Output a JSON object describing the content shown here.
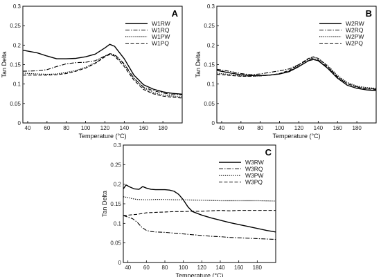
{
  "chart_data": [
    {
      "type": "line",
      "panel": "A",
      "xlabel": "Temperature (°C)",
      "ylabel": "Tan Delta",
      "xlim": [
        35,
        200
      ],
      "ylim": [
        0,
        0.3
      ],
      "xticks": [
        40,
        60,
        80,
        100,
        120,
        140,
        160,
        180
      ],
      "yticks": [
        0,
        0.05,
        0.1,
        0.15,
        0.2,
        0.25,
        0.3
      ],
      "legend_position": "top-right",
      "series": [
        {
          "name": "W1RW",
          "style": "solid",
          "x": [
            35,
            50,
            60,
            70,
            80,
            90,
            100,
            110,
            120,
            125,
            130,
            140,
            150,
            160,
            170,
            180,
            190,
            200
          ],
          "y": [
            0.187,
            0.18,
            0.172,
            0.165,
            0.165,
            0.166,
            0.17,
            0.177,
            0.193,
            0.202,
            0.197,
            0.165,
            0.123,
            0.098,
            0.087,
            0.08,
            0.076,
            0.074
          ]
        },
        {
          "name": "W1RQ",
          "style": "dashdot",
          "x": [
            35,
            50,
            60,
            70,
            80,
            90,
            100,
            110,
            120,
            125,
            130,
            140,
            150,
            160,
            170,
            180,
            190,
            200
          ],
          "y": [
            0.133,
            0.134,
            0.137,
            0.145,
            0.152,
            0.155,
            0.156,
            0.16,
            0.172,
            0.178,
            0.176,
            0.152,
            0.115,
            0.092,
            0.083,
            0.077,
            0.073,
            0.072
          ]
        },
        {
          "name": "W1PW",
          "style": "dotted",
          "x": [
            35,
            50,
            60,
            70,
            80,
            90,
            100,
            110,
            120,
            125,
            130,
            140,
            150,
            160,
            170,
            180,
            190,
            200
          ],
          "y": [
            0.128,
            0.126,
            0.125,
            0.126,
            0.13,
            0.135,
            0.143,
            0.155,
            0.172,
            0.177,
            0.174,
            0.15,
            0.115,
            0.09,
            0.078,
            0.072,
            0.069,
            0.067
          ]
        },
        {
          "name": "W1PQ",
          "style": "dashed",
          "x": [
            35,
            50,
            60,
            70,
            80,
            90,
            100,
            110,
            120,
            125,
            130,
            140,
            150,
            160,
            170,
            180,
            190,
            200
          ],
          "y": [
            0.123,
            0.123,
            0.123,
            0.124,
            0.127,
            0.133,
            0.141,
            0.153,
            0.17,
            0.176,
            0.172,
            0.145,
            0.11,
            0.086,
            0.075,
            0.069,
            0.066,
            0.064
          ]
        }
      ]
    },
    {
      "type": "line",
      "panel": "B",
      "xlabel": "Temperature (°C)",
      "ylabel": "Tan Delta",
      "xlim": [
        35,
        200
      ],
      "ylim": [
        0,
        0.3
      ],
      "xticks": [
        40,
        60,
        80,
        100,
        120,
        140,
        160,
        180
      ],
      "yticks": [
        0,
        0.05,
        0.1,
        0.15,
        0.2,
        0.25,
        0.3
      ],
      "legend_position": "top-right",
      "series": [
        {
          "name": "W2RW",
          "style": "solid",
          "x": [
            35,
            50,
            60,
            70,
            80,
            90,
            100,
            110,
            120,
            130,
            135,
            140,
            150,
            160,
            170,
            180,
            190,
            200
          ],
          "y": [
            0.135,
            0.128,
            0.124,
            0.122,
            0.122,
            0.123,
            0.126,
            0.132,
            0.145,
            0.16,
            0.163,
            0.16,
            0.14,
            0.115,
            0.097,
            0.089,
            0.085,
            0.083
          ]
        },
        {
          "name": "W2RQ",
          "style": "dashdot",
          "x": [
            35,
            50,
            60,
            70,
            80,
            90,
            100,
            110,
            120,
            130,
            135,
            140,
            150,
            160,
            170,
            180,
            190,
            200
          ],
          "y": [
            0.138,
            0.132,
            0.127,
            0.124,
            0.126,
            0.13,
            0.134,
            0.139,
            0.15,
            0.163,
            0.166,
            0.162,
            0.142,
            0.118,
            0.101,
            0.093,
            0.089,
            0.087
          ]
        },
        {
          "name": "W2PW",
          "style": "dotted",
          "x": [
            35,
            50,
            60,
            70,
            80,
            90,
            100,
            110,
            120,
            130,
            135,
            140,
            150,
            160,
            170,
            180,
            190,
            200
          ],
          "y": [
            0.128,
            0.124,
            0.121,
            0.12,
            0.121,
            0.123,
            0.126,
            0.133,
            0.148,
            0.165,
            0.169,
            0.166,
            0.147,
            0.122,
            0.104,
            0.095,
            0.091,
            0.089
          ]
        },
        {
          "name": "W2PQ",
          "style": "dashed",
          "x": [
            35,
            50,
            60,
            70,
            80,
            90,
            100,
            110,
            120,
            130,
            135,
            140,
            150,
            160,
            170,
            180,
            190,
            200
          ],
          "y": [
            0.125,
            0.122,
            0.12,
            0.12,
            0.121,
            0.123,
            0.127,
            0.135,
            0.15,
            0.166,
            0.17,
            0.166,
            0.145,
            0.119,
            0.101,
            0.092,
            0.088,
            0.086
          ]
        }
      ]
    },
    {
      "type": "line",
      "panel": "C",
      "xlabel": "Temperature (°C)",
      "ylabel": "Tan Delta",
      "xlim": [
        35,
        200
      ],
      "ylim": [
        0,
        0.3
      ],
      "xticks": [
        40,
        60,
        80,
        100,
        120,
        140,
        160,
        180
      ],
      "yticks": [
        0,
        0.05,
        0.1,
        0.15,
        0.2,
        0.25,
        0.3
      ],
      "legend_position": "top-right",
      "series": [
        {
          "name": "W3RW",
          "style": "solid",
          "x": [
            35,
            38,
            42,
            47,
            52,
            56,
            60,
            65,
            70,
            75,
            80,
            85,
            90,
            95,
            100,
            105,
            110,
            120,
            130,
            140,
            150,
            160,
            170,
            180,
            190,
            200
          ],
          "y": [
            0.188,
            0.198,
            0.193,
            0.188,
            0.187,
            0.194,
            0.19,
            0.187,
            0.186,
            0.186,
            0.186,
            0.185,
            0.182,
            0.174,
            0.16,
            0.142,
            0.13,
            0.121,
            0.114,
            0.108,
            0.102,
            0.097,
            0.092,
            0.087,
            0.082,
            0.078
          ]
        },
        {
          "name": "W3RQ",
          "style": "dashdot",
          "x": [
            35,
            45,
            50,
            55,
            60,
            65,
            70,
            80,
            90,
            100,
            110,
            120,
            130,
            140,
            150,
            160,
            170,
            180,
            190,
            200
          ],
          "y": [
            0.12,
            0.112,
            0.103,
            0.09,
            0.082,
            0.079,
            0.078,
            0.077,
            0.075,
            0.073,
            0.071,
            0.069,
            0.067,
            0.066,
            0.064,
            0.063,
            0.062,
            0.061,
            0.06,
            0.059
          ]
        },
        {
          "name": "W3PW",
          "style": "dotted",
          "x": [
            35,
            40,
            45,
            50,
            60,
            70,
            80,
            90,
            100,
            120,
            140,
            160,
            180,
            200
          ],
          "y": [
            0.168,
            0.166,
            0.163,
            0.161,
            0.16,
            0.161,
            0.161,
            0.16,
            0.16,
            0.159,
            0.158,
            0.158,
            0.158,
            0.157
          ]
        },
        {
          "name": "W3PQ",
          "style": "dashed",
          "x": [
            35,
            40,
            45,
            50,
            55,
            60,
            70,
            80,
            90,
            100,
            110,
            120,
            130,
            140,
            150,
            160,
            180,
            200
          ],
          "y": [
            0.12,
            0.121,
            0.122,
            0.123,
            0.125,
            0.127,
            0.128,
            0.129,
            0.13,
            0.13,
            0.131,
            0.131,
            0.132,
            0.133,
            0.132,
            0.133,
            0.133,
            0.133
          ]
        }
      ]
    }
  ]
}
